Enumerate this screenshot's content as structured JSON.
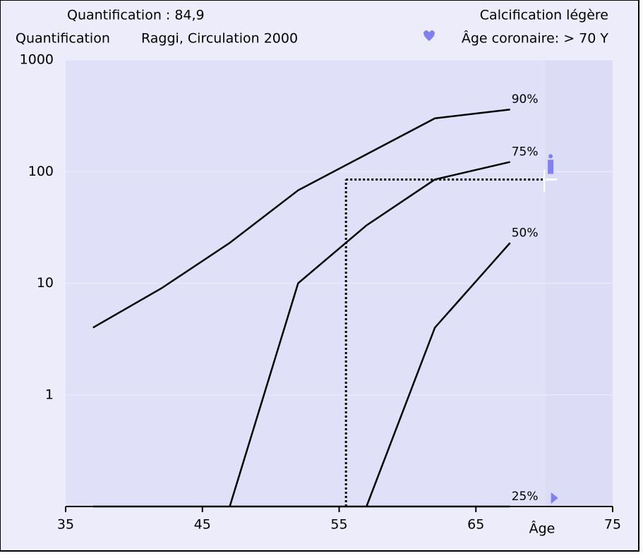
{
  "chart_data": {
    "type": "line",
    "title": "Quantification : 84,9",
    "subtitle_left": "Quantification",
    "subtitle_center": "Raggi, Circulation 2000",
    "title_right": "Calcification légère",
    "subtitle_right": "Âge coronaire: > 70 Y",
    "x_label": "Âge",
    "log_y": true,
    "xlim": [
      35,
      75
    ],
    "ylim": [
      0.1,
      1000
    ],
    "xticks": [
      35,
      45,
      55,
      65,
      75
    ],
    "yticks": [
      1,
      10,
      100,
      1000
    ],
    "series": [
      {
        "name": "90%",
        "color": "#000000",
        "x": [
          37,
          42,
          47,
          52,
          62,
          67.5
        ],
        "values": [
          4,
          9,
          23,
          68,
          300,
          360
        ]
      },
      {
        "name": "75%",
        "color": "#000000",
        "x": [
          47,
          52,
          57,
          62,
          67.5
        ],
        "values": [
          0.1,
          10,
          33,
          85,
          122
        ]
      },
      {
        "name": "50%",
        "color": "#000000",
        "x": [
          57,
          62,
          67.5
        ],
        "values": [
          0.1,
          4,
          23
        ]
      },
      {
        "name": "25%",
        "color": "#000000",
        "x": [
          37,
          67.5
        ],
        "values": [
          0.1,
          0.1
        ]
      }
    ],
    "marker": {
      "x": 55.5,
      "y": 84.9,
      "x_end": 70
    }
  }
}
